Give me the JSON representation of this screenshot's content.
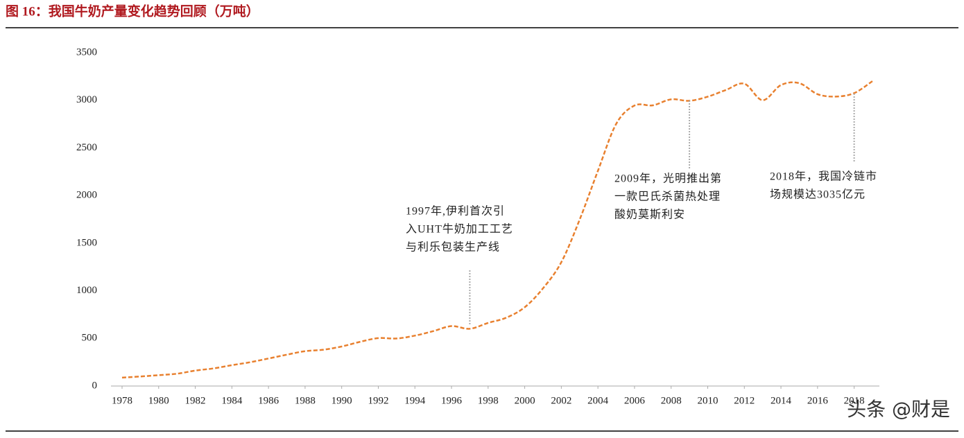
{
  "chart_data": {
    "type": "line",
    "title": "图 16：我国牛奶产量变化趋势回顾（万吨）",
    "x": [
      1978,
      1979,
      1980,
      1981,
      1982,
      1983,
      1984,
      1985,
      1986,
      1987,
      1988,
      1989,
      1990,
      1991,
      1992,
      1993,
      1994,
      1995,
      1996,
      1997,
      1998,
      1999,
      2000,
      2001,
      2002,
      2003,
      2004,
      2005,
      2006,
      2007,
      2008,
      2009,
      2010,
      2011,
      2012,
      2013,
      2014,
      2015,
      2016,
      2017,
      2018,
      2019
    ],
    "series": [
      {
        "color": "#e8802f",
        "values": [
          88,
          100,
          114,
          129,
          162,
          185,
          219,
          250,
          289,
          329,
          366,
          381,
          415,
          464,
          503,
          499,
          529,
          576,
          629,
          601,
          663,
          718,
          827,
          1026,
          1300,
          1746,
          2260,
          2753,
          2945,
          2947,
          3010,
          2995,
          3038,
          3109,
          3174,
          3001,
          3160,
          3180,
          3064,
          3039,
          3075,
          3201
        ]
      }
    ],
    "xlim": [
      1978,
      2019
    ],
    "xticks": [
      1978,
      1980,
      1982,
      1984,
      1986,
      1988,
      1990,
      1992,
      1994,
      1996,
      1998,
      2000,
      2002,
      2004,
      2006,
      2008,
      2010,
      2012,
      2014,
      2016,
      2018
    ],
    "ylim": [
      0,
      3500
    ],
    "yticks": [
      0,
      500,
      1000,
      1500,
      2000,
      2500,
      3000,
      3500
    ],
    "annotations": [
      {
        "x": 1997,
        "lines": [
          "1997年,伊利首次引",
          "入UHT牛奶加工工艺",
          "与利乐包装生产线"
        ]
      },
      {
        "x": 2009,
        "lines": [
          "2009年，光明推出第",
          "一款巴氏杀菌热处理",
          "酸奶莫斯利安"
        ]
      },
      {
        "x": 2018,
        "lines": [
          "2018年，我国冷链市",
          "场规模达3035亿元"
        ]
      }
    ],
    "watermark": "头条 @财是"
  }
}
